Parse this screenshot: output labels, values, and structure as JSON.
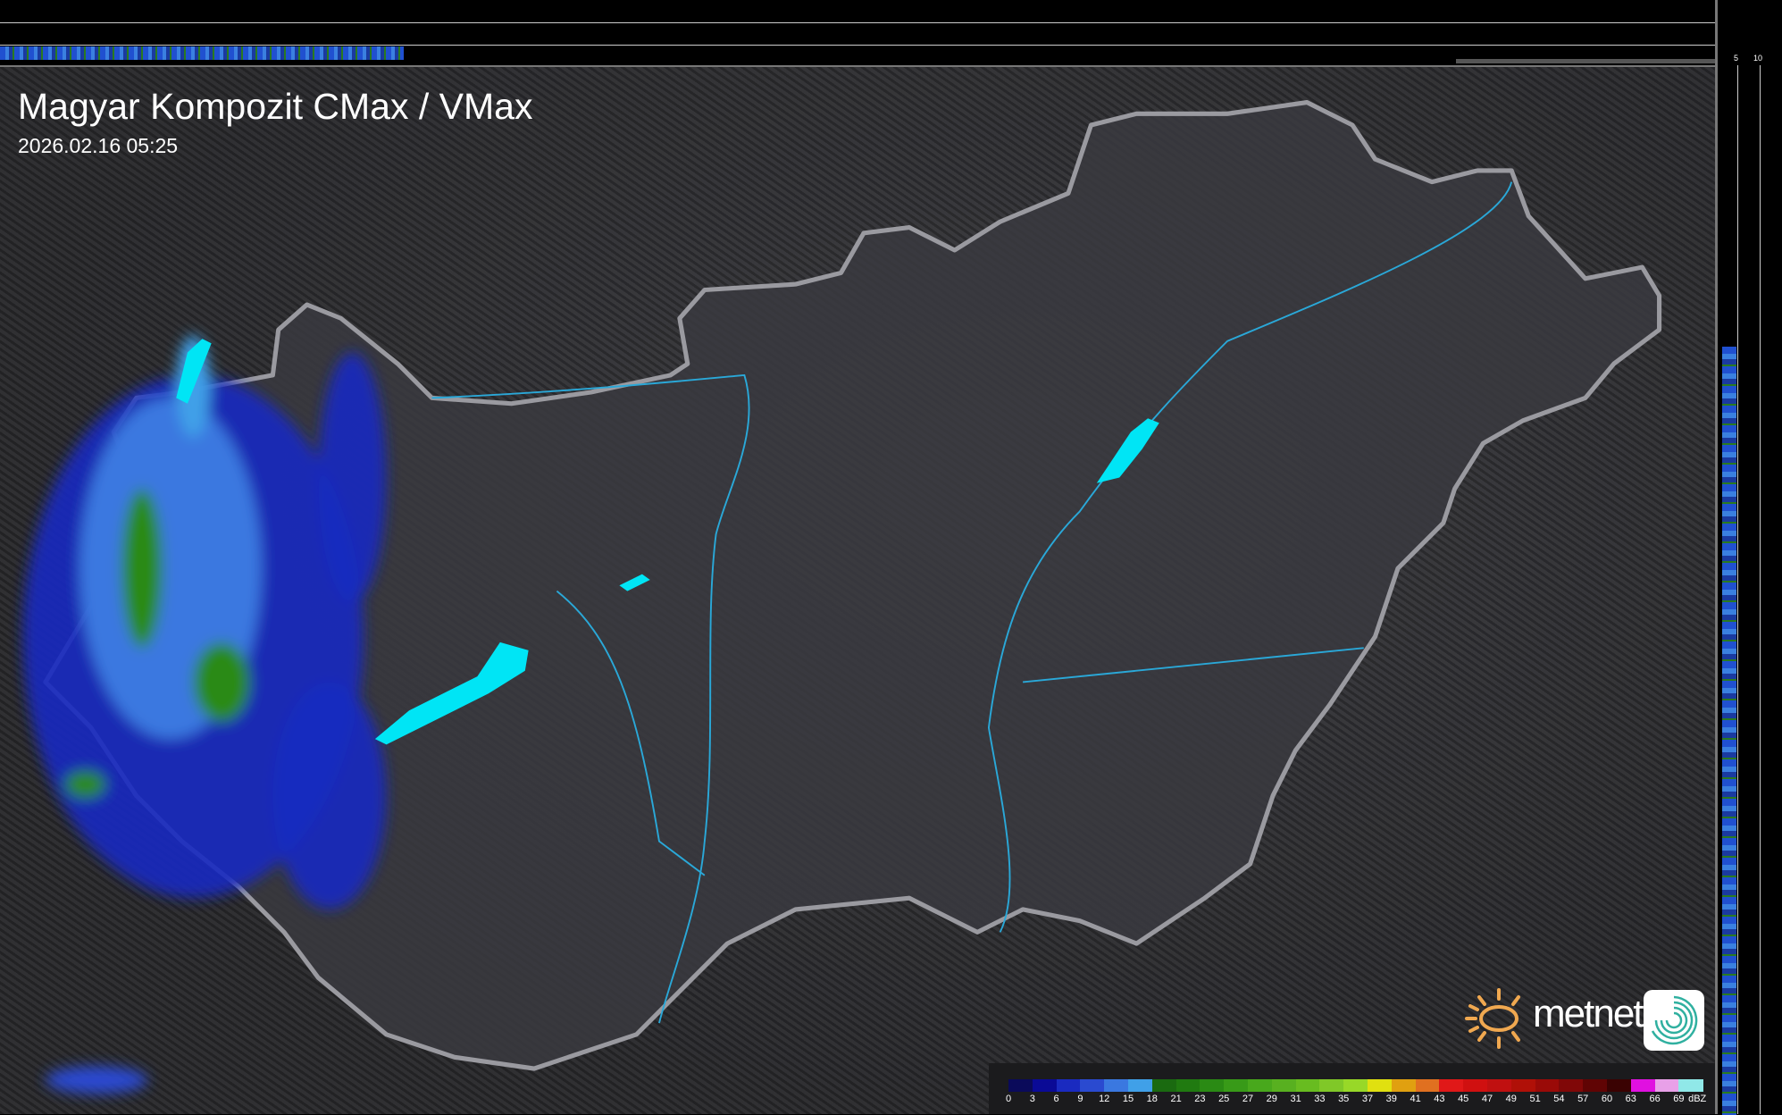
{
  "header": {
    "title": "Magyar Kompozit CMax / VMax",
    "timestamp": "2026.02.16 05:25"
  },
  "profile_axes": {
    "vertical_ticks": [
      "10",
      "5"
    ],
    "horizontal_ticks": [
      "5",
      "10"
    ]
  },
  "legend": {
    "unit": "dBZ",
    "labels": [
      "0",
      "3",
      "6",
      "9",
      "12",
      "15",
      "18",
      "21",
      "23",
      "25",
      "27",
      "29",
      "31",
      "33",
      "35",
      "37",
      "39",
      "41",
      "43",
      "45",
      "47",
      "49",
      "51",
      "54",
      "57",
      "60",
      "63",
      "66",
      "69"
    ],
    "colors": [
      "#0a0a5a",
      "#0a0a96",
      "#1a2ac0",
      "#2a4ad0",
      "#3a78e0",
      "#40a0e8",
      "#1a6a10",
      "#207a10",
      "#2a8a14",
      "#389a18",
      "#48a81c",
      "#58b020",
      "#68bc20",
      "#80c828",
      "#98d828",
      "#e0e010",
      "#e0a010",
      "#e07020",
      "#e01818",
      "#d01010",
      "#c01010",
      "#b01008",
      "#9a0a08",
      "#800808",
      "#600404",
      "#3a0202",
      "#e010e0",
      "#e8a0e8",
      "#90e8e8"
    ]
  },
  "logo": {
    "text": "metnet",
    "sun_color": "#f0a850",
    "icon_color": "#30b0a0"
  },
  "colors": {
    "border": "#9a9aa0",
    "rivers": "#2aa8d8",
    "lakes": "#00e5f5",
    "country_fill": "#3a3a3f"
  }
}
